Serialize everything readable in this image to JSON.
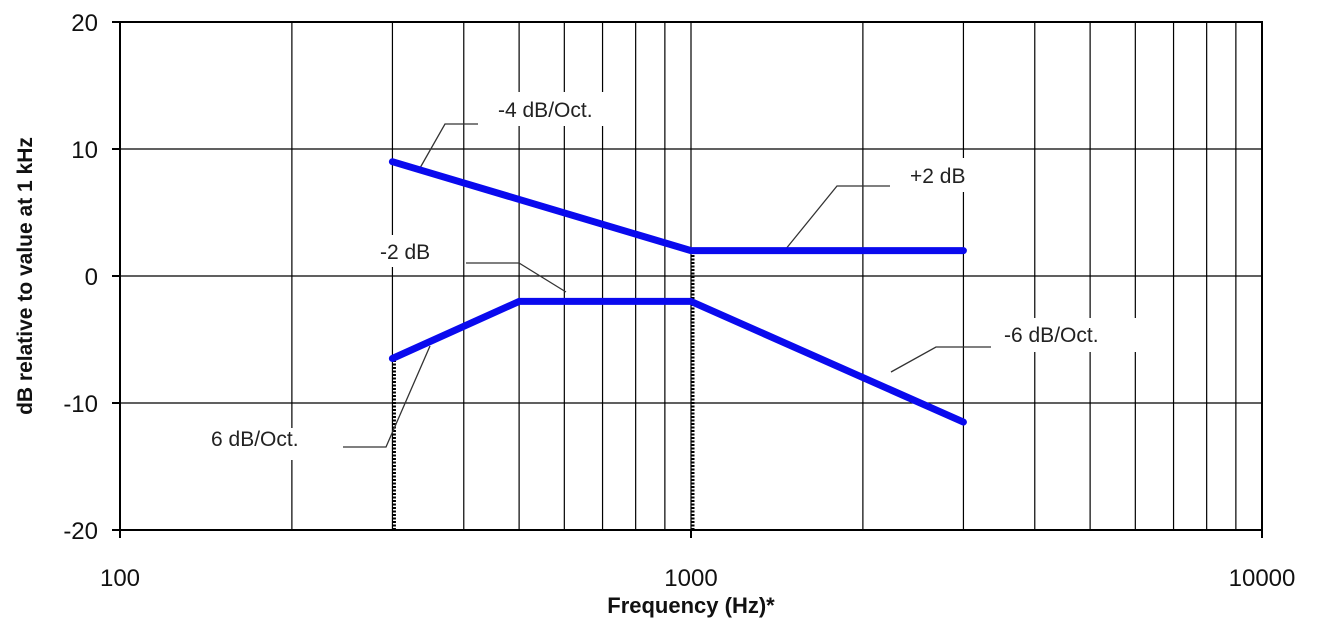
{
  "chart_data": {
    "type": "line",
    "xscale": "log",
    "xlim": [
      100,
      10000
    ],
    "ylim": [
      -20,
      20
    ],
    "xlabel": "Frequency (Hz)*",
    "ylabel": "dB relative to value at 1 kHz",
    "x_ticks": [
      100,
      1000,
      10000
    ],
    "x_tick_labels": [
      "100",
      "1000",
      "10000"
    ],
    "y_ticks": [
      -20,
      -10,
      0,
      10,
      20
    ],
    "y_tick_labels": [
      "-20",
      "-10",
      "0",
      "10",
      "20"
    ],
    "grid": true,
    "series": [
      {
        "x": [
          300,
          1000,
          3000
        ],
        "y": [
          9,
          2,
          2
        ],
        "color": "#0a0aee"
      },
      {
        "x": [
          300,
          500,
          1000,
          3000
        ],
        "y": [
          -6.5,
          -2,
          -2,
          -11.5
        ],
        "color": "#0a0aee"
      }
    ],
    "reference_lines_x": [
      300,
      1000
    ],
    "annotations": [
      {
        "text": "-4 dB/Oct."
      },
      {
        "text": "+2 dB"
      },
      {
        "text": "-2 dB"
      },
      {
        "text": "-6 dB/Oct."
      },
      {
        "text": "6 dB/Oct."
      }
    ]
  }
}
